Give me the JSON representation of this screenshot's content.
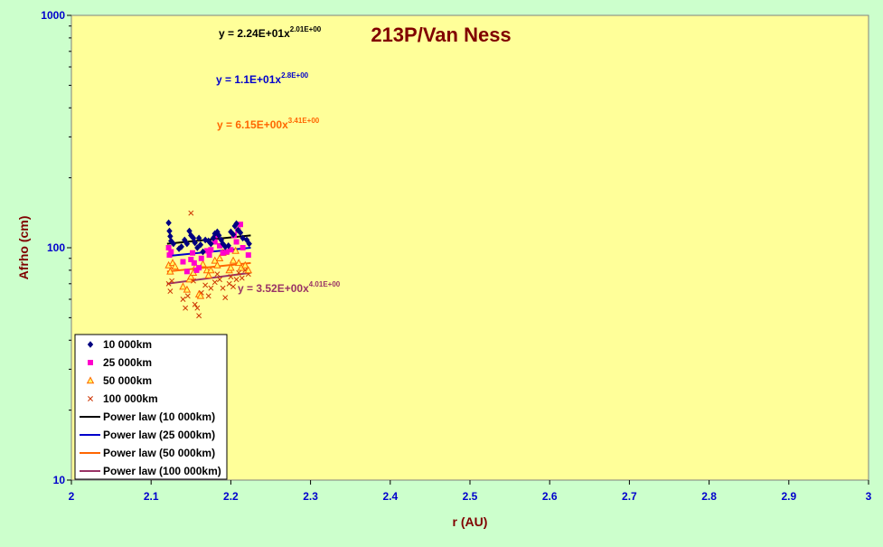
{
  "chart_data": {
    "type": "scatter",
    "title": "213P/Van Ness",
    "xlabel": "r (AU)",
    "ylabel": "Afrho (cm)",
    "xlim": [
      2,
      3
    ],
    "ylim": [
      10,
      1000
    ],
    "y_scale": "log",
    "x_ticks": [
      "2",
      "2.1",
      "2.2",
      "2.3",
      "2.4",
      "2.5",
      "2.6",
      "2.7",
      "2.8",
      "2.9",
      "3"
    ],
    "y_ticks": [
      "10",
      "100",
      "1000"
    ],
    "grid": false,
    "legend_position": "bottom-left",
    "series": [
      {
        "name": "10 000km",
        "marker": "diamond",
        "color": "#000080",
        "points": [
          [
            2.122,
            128
          ],
          [
            2.123,
            118
          ],
          [
            2.124,
            112
          ],
          [
            2.125,
            107
          ],
          [
            2.128,
            104
          ],
          [
            2.135,
            99
          ],
          [
            2.138,
            101
          ],
          [
            2.142,
            108
          ],
          [
            2.145,
            104
          ],
          [
            2.148,
            118
          ],
          [
            2.15,
            113
          ],
          [
            2.153,
            110
          ],
          [
            2.155,
            105
          ],
          [
            2.158,
            100
          ],
          [
            2.16,
            110
          ],
          [
            2.162,
            103
          ],
          [
            2.165,
            96
          ],
          [
            2.168,
            108
          ],
          [
            2.172,
            107
          ],
          [
            2.175,
            104
          ],
          [
            2.178,
            110
          ],
          [
            2.18,
            115
          ],
          [
            2.183,
            117
          ],
          [
            2.185,
            113
          ],
          [
            2.188,
            108
          ],
          [
            2.19,
            104
          ],
          [
            2.193,
            101
          ],
          [
            2.197,
            102
          ],
          [
            2.2,
            117
          ],
          [
            2.203,
            114
          ],
          [
            2.205,
            124
          ],
          [
            2.207,
            127
          ],
          [
            2.209,
            119
          ],
          [
            2.212,
            116
          ],
          [
            2.215,
            110
          ],
          [
            2.22,
            108
          ],
          [
            2.223,
            104
          ]
        ]
      },
      {
        "name": "25 000km",
        "marker": "square",
        "color": "#ff00cc",
        "points": [
          [
            2.122,
            100
          ],
          [
            2.123,
            93
          ],
          [
            2.125,
            96
          ],
          [
            2.14,
            87
          ],
          [
            2.145,
            79
          ],
          [
            2.15,
            89
          ],
          [
            2.152,
            95
          ],
          [
            2.154,
            86
          ],
          [
            2.157,
            80
          ],
          [
            2.16,
            82
          ],
          [
            2.163,
            90
          ],
          [
            2.17,
            97
          ],
          [
            2.173,
            93
          ],
          [
            2.175,
            98
          ],
          [
            2.18,
            106
          ],
          [
            2.183,
            113
          ],
          [
            2.186,
            102
          ],
          [
            2.19,
            95
          ],
          [
            2.195,
            96
          ],
          [
            2.2,
            98
          ],
          [
            2.204,
            113
          ],
          [
            2.207,
            106
          ],
          [
            2.209,
            119
          ],
          [
            2.212,
            126
          ],
          [
            2.215,
            100
          ],
          [
            2.222,
            93
          ]
        ]
      },
      {
        "name": "50 000km",
        "marker": "triangle",
        "color": "#ff6600",
        "points": [
          [
            2.122,
            84
          ],
          [
            2.124,
            79
          ],
          [
            2.127,
            86
          ],
          [
            2.13,
            83
          ],
          [
            2.14,
            68
          ],
          [
            2.145,
            66
          ],
          [
            2.148,
            73
          ],
          [
            2.15,
            75
          ],
          [
            2.153,
            78
          ],
          [
            2.156,
            83
          ],
          [
            2.16,
            63
          ],
          [
            2.162,
            62
          ],
          [
            2.165,
            85
          ],
          [
            2.17,
            80
          ],
          [
            2.172,
            76
          ],
          [
            2.175,
            80
          ],
          [
            2.18,
            88
          ],
          [
            2.183,
            84
          ],
          [
            2.186,
            90
          ],
          [
            2.19,
            95
          ],
          [
            2.193,
            96
          ],
          [
            2.198,
            80
          ],
          [
            2.2,
            82
          ],
          [
            2.203,
            88
          ],
          [
            2.206,
            97
          ],
          [
            2.21,
            86
          ],
          [
            2.213,
            82
          ],
          [
            2.218,
            84
          ],
          [
            2.222,
            80
          ]
        ]
      },
      {
        "name": "100 000km",
        "marker": "x",
        "color": "#cc3300",
        "points": [
          [
            2.122,
            70
          ],
          [
            2.124,
            65
          ],
          [
            2.126,
            72
          ],
          [
            2.14,
            60
          ],
          [
            2.143,
            55
          ],
          [
            2.146,
            62
          ],
          [
            2.15,
            141
          ],
          [
            2.153,
            72
          ],
          [
            2.155,
            57
          ],
          [
            2.158,
            55
          ],
          [
            2.16,
            51
          ],
          [
            2.163,
            64
          ],
          [
            2.168,
            69
          ],
          [
            2.172,
            62
          ],
          [
            2.175,
            67
          ],
          [
            2.18,
            71
          ],
          [
            2.183,
            77
          ],
          [
            2.186,
            73
          ],
          [
            2.19,
            67
          ],
          [
            2.193,
            61
          ],
          [
            2.198,
            70
          ],
          [
            2.2,
            75
          ],
          [
            2.203,
            68
          ],
          [
            2.207,
            73
          ],
          [
            2.21,
            78
          ],
          [
            2.214,
            74
          ],
          [
            2.218,
            80
          ],
          [
            2.222,
            77
          ]
        ]
      }
    ],
    "fits": [
      {
        "name": "Power law (10 000km)",
        "color": "#000000",
        "x_range": [
          2.12,
          2.225
        ],
        "y_range": [
          104,
          113
        ],
        "coef": "2.24E+01",
        "exp": "2.01E+00",
        "label_color": "#000000"
      },
      {
        "name": "Power law (25 000km)",
        "color": "#0000cc",
        "x_range": [
          2.12,
          2.225
        ],
        "y_range": [
          92,
          100
        ],
        "coef": "1.1E+01",
        "exp": "2.8E+00",
        "label_color": "#0000cc"
      },
      {
        "name": "Power law (50 000km)",
        "color": "#ff6600",
        "x_range": [
          2.12,
          2.225
        ],
        "y_range": [
          79,
          86
        ],
        "coef": "6.15E+00",
        "exp": "3.41E+00",
        "label_color": "#ff6600"
      },
      {
        "name": "Power law (100 000km)",
        "color": "#993366",
        "x_range": [
          2.12,
          2.225
        ],
        "y_range": [
          70,
          78
        ],
        "coef": "3.52E+00",
        "exp": "4.01E+00",
        "label_color": "#993366"
      }
    ]
  }
}
